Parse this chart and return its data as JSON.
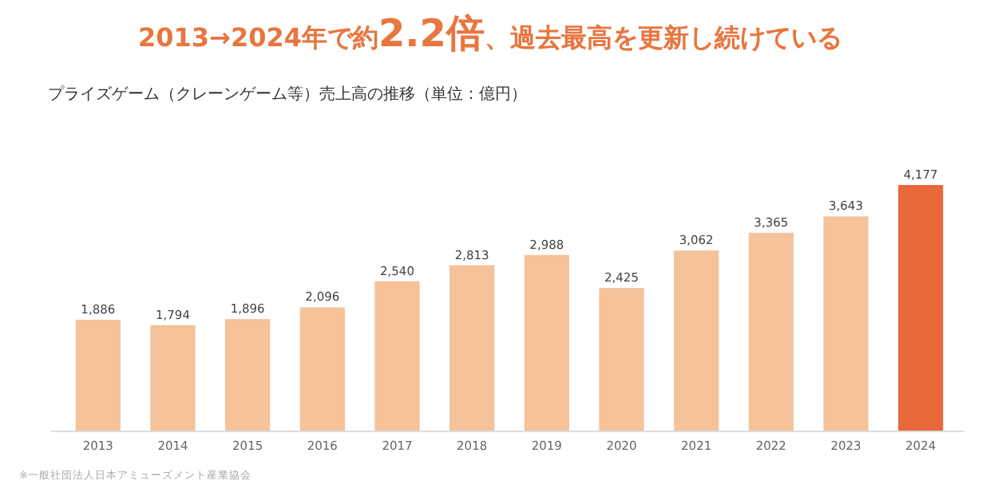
{
  "chart_data": {
    "type": "bar",
    "title": "2013→2024年で約**2.2倍**、過去最高を更新し続けている",
    "subtitle": "プライズゲーム（クレーンゲーム等）売上高の推移（単位：億円）",
    "categories": [
      "2013",
      "2014",
      "2015",
      "2016",
      "2017",
      "2018",
      "2019",
      "2020",
      "2021",
      "2022",
      "2023",
      "2024"
    ],
    "values": [
      1886,
      1794,
      1896,
      2096,
      2540,
      2813,
      2988,
      2425,
      3062,
      3365,
      3643,
      4177
    ],
    "value_labels": [
      "1,886",
      "1,794",
      "1,896",
      "2,096",
      "2,540",
      "2,813",
      "2,988",
      "2,425",
      "3,062",
      "3,365",
      "3,643",
      "4,177"
    ],
    "colors": [
      "#f5c29a",
      "#f5c29a",
      "#f5c29a",
      "#f5c29a",
      "#f5c29a",
      "#f5c29a",
      "#f5c29a",
      "#f5c29a",
      "#f5c29a",
      "#f5c29a",
      "#f5c29a",
      "#e8693a"
    ],
    "annotations": [
      "※一般社団法人日本アミューズメント産業協会"
    ]
  }
}
